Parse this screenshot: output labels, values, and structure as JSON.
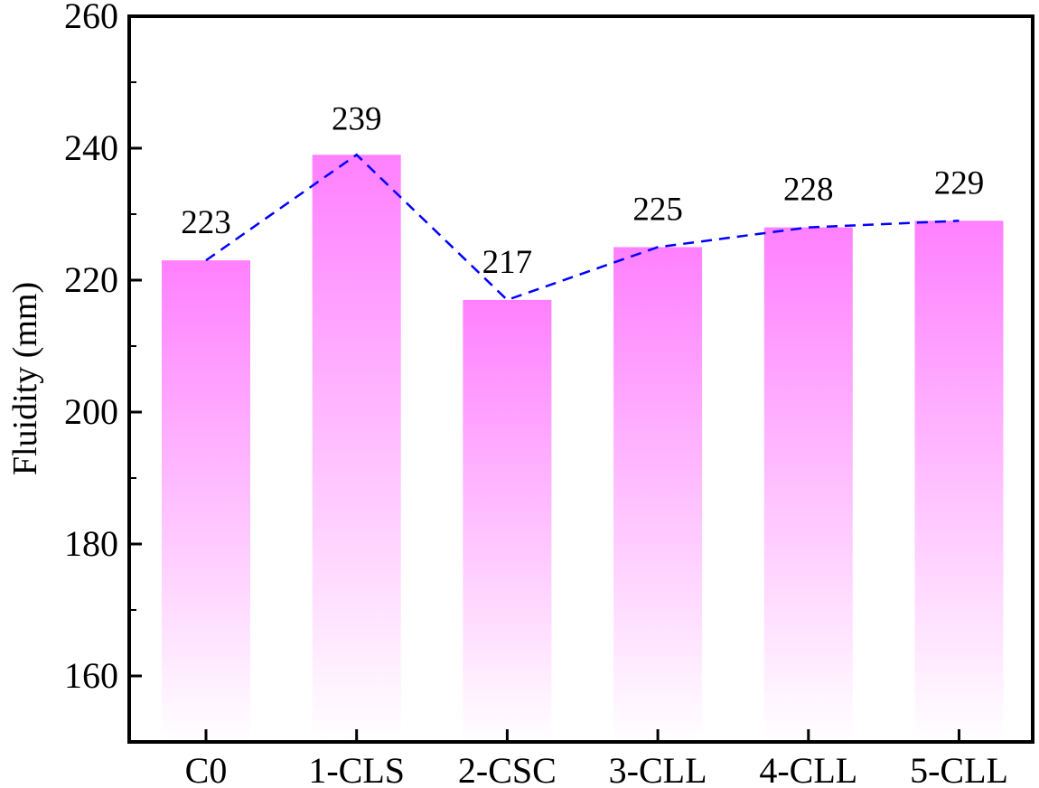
{
  "chart_data": {
    "type": "bar",
    "categories": [
      "C0",
      "1-CLS",
      "2-CSC",
      "3-CLL",
      "4-CLL",
      "5-CLL"
    ],
    "values": [
      223,
      239,
      217,
      225,
      228,
      229
    ],
    "data_labels": [
      "223",
      "239",
      "217",
      "225",
      "228",
      "229"
    ],
    "xlabel": "",
    "ylabel": "Fluidity (mm)",
    "ylim": [
      150,
      260
    ],
    "yticks": [
      160,
      180,
      200,
      220,
      240,
      260
    ],
    "ytick_labels": [
      "160",
      "180",
      "200",
      "220",
      "240",
      "260"
    ],
    "grid": false,
    "legend": "none",
    "overlay_line": "dashed line connecting bar tops",
    "colors": {
      "bar_top": "#ff80ff",
      "bar_bottom": "#ffffff",
      "line": "#0000ff",
      "axis": "#000000"
    }
  }
}
